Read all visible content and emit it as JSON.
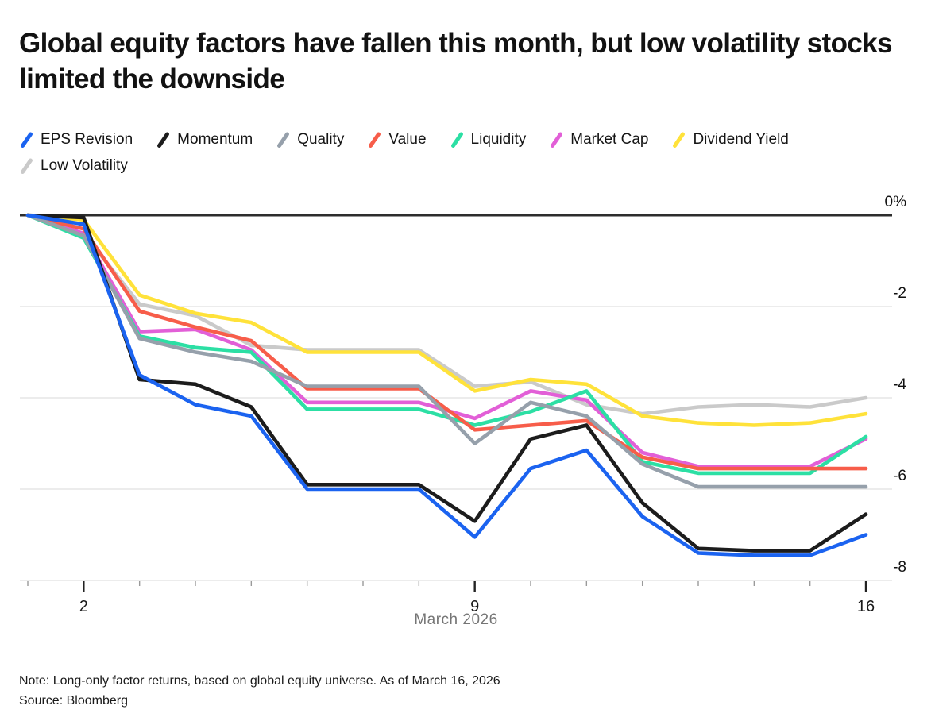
{
  "title": "Global equity factors have fallen this month, but low volatility stocks limited the downside",
  "footer": {
    "note": "Note: Long-only factor returns, based on global equity universe. As of March 16, 2026",
    "source": "Source: Bloomberg"
  },
  "chart_data": {
    "type": "line",
    "title": "Global equity factors have fallen this month, but low volatility stocks limited the downside",
    "x": [
      1,
      2,
      3,
      4,
      5,
      6,
      7,
      8,
      9,
      10,
      11,
      12,
      13,
      14,
      15,
      16
    ],
    "x_axis": {
      "label": "March 2026",
      "major_ticks": [
        {
          "day": 2,
          "label": "2"
        },
        {
          "day": 9,
          "label": "9"
        },
        {
          "day": 16,
          "label": "16"
        }
      ],
      "minor_ticks_every_day": true
    },
    "y_axis": {
      "unit": "%",
      "gridlines": [
        0,
        -2,
        -4,
        -6,
        -8
      ],
      "tick_labels": [
        "0%",
        "-2",
        "-4",
        "-6",
        "-8"
      ],
      "ylim": [
        -8.3,
        0.3
      ],
      "labels_position": "right"
    },
    "legend_position": "top-left",
    "series": [
      {
        "name": "EPS Revision",
        "color": "#1b63f0",
        "values": [
          0,
          -0.2,
          -3.5,
          -4.15,
          -4.4,
          -6.0,
          -6.0,
          -6.0,
          -7.05,
          -5.55,
          -5.15,
          -6.6,
          -7.4,
          -7.45,
          -7.45,
          -7.0
        ]
      },
      {
        "name": "Momentum",
        "color": "#1c1c1c",
        "values": [
          0,
          -0.05,
          -3.6,
          -3.7,
          -4.2,
          -5.9,
          -5.9,
          -5.9,
          -6.7,
          -4.9,
          -4.6,
          -6.3,
          -7.3,
          -7.35,
          -7.35,
          -6.55
        ]
      },
      {
        "name": "Quality",
        "color": "#96a0ab",
        "values": [
          0,
          -0.45,
          -2.7,
          -3.0,
          -3.2,
          -3.75,
          -3.75,
          -3.75,
          -5.0,
          -4.1,
          -4.4,
          -5.45,
          -5.95,
          -5.95,
          -5.95,
          -5.95
        ]
      },
      {
        "name": "Value",
        "color": "#f75d4a",
        "values": [
          0,
          -0.3,
          -2.1,
          -2.45,
          -2.75,
          -3.8,
          -3.8,
          -3.8,
          -4.7,
          -4.6,
          -4.5,
          -5.3,
          -5.55,
          -5.55,
          -5.55,
          -5.55
        ]
      },
      {
        "name": "Liquidity",
        "color": "#2cdfa4",
        "values": [
          0,
          -0.5,
          -2.65,
          -2.9,
          -3.0,
          -4.25,
          -4.25,
          -4.25,
          -4.6,
          -4.3,
          -3.85,
          -5.4,
          -5.65,
          -5.65,
          -5.65,
          -4.85
        ]
      },
      {
        "name": "Market Cap",
        "color": "#e25fd7",
        "values": [
          0,
          -0.4,
          -2.55,
          -2.5,
          -2.95,
          -4.1,
          -4.1,
          -4.1,
          -4.45,
          -3.85,
          -4.05,
          -5.2,
          -5.5,
          -5.5,
          -5.5,
          -4.9
        ]
      },
      {
        "name": "Dividend Yield",
        "color": "#ffe23a",
        "values": [
          0,
          -0.1,
          -1.75,
          -2.15,
          -2.35,
          -3.0,
          -3.0,
          -3.0,
          -3.85,
          -3.6,
          -3.7,
          -4.4,
          -4.55,
          -4.6,
          -4.55,
          -4.35
        ]
      },
      {
        "name": "Low Volatility",
        "color": "#cacaca",
        "values": [
          0,
          -0.4,
          -1.95,
          -2.2,
          -2.85,
          -2.95,
          -2.95,
          -2.95,
          -3.75,
          -3.65,
          -4.15,
          -4.35,
          -4.2,
          -4.15,
          -4.2,
          -4.0
        ]
      }
    ]
  }
}
